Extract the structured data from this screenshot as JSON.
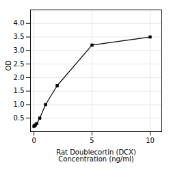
{
  "chart_data": {
    "type": "line",
    "marker": "square",
    "xlabel": "Rat Doublecortin (DCX)\nConcentration (ng/ml)",
    "ylabel": "OD",
    "x": [
      0,
      0.0625,
      0.125,
      0.25,
      0.5,
      1,
      2,
      5,
      10
    ],
    "values": [
      0.2,
      0.22,
      0.25,
      0.3,
      0.5,
      1.0,
      1.7,
      3.2,
      3.5
    ],
    "xlim": [
      -0.3,
      11
    ],
    "ylim": [
      0,
      4.5
    ],
    "xticks": [
      0,
      5,
      10
    ],
    "yticks": [
      0.5,
      {
        "value": 1.0,
        "label": "1.0"
      },
      1.5,
      {
        "value": 2.0,
        "label": "2.0"
      },
      2.5,
      {
        "value": 3.0,
        "label": "3.0"
      },
      3.5,
      {
        "value": 4.0,
        "label": "4.0"
      }
    ],
    "grid": true
  }
}
